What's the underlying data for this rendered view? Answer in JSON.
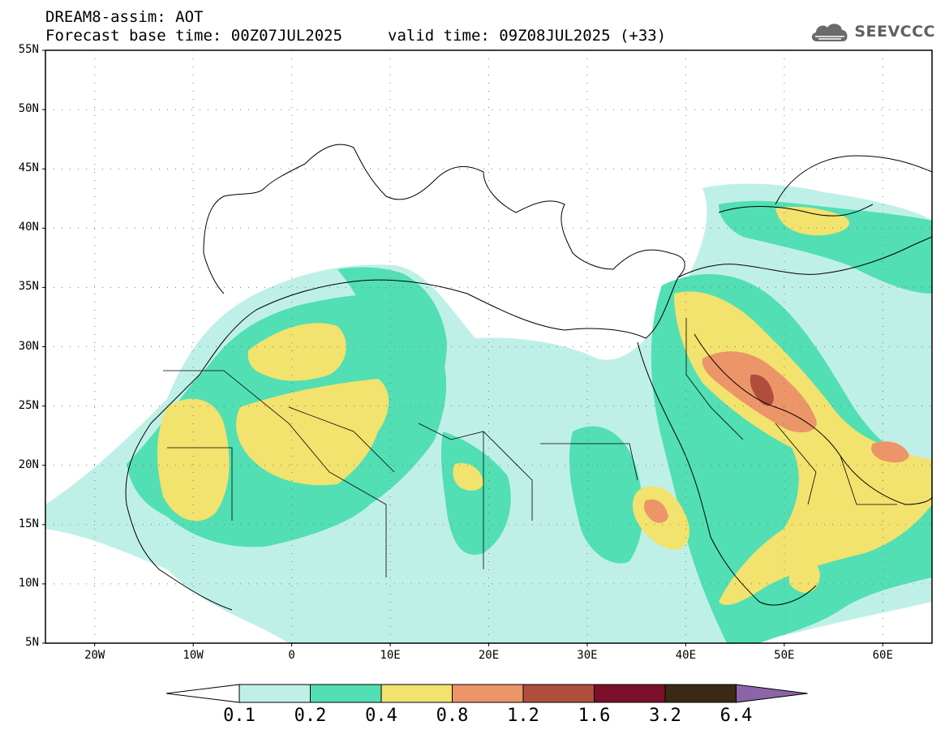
{
  "header": {
    "title_line1": "DREAM8-assim: AOT",
    "title_line2": "Forecast base time: 00Z07JUL2025",
    "valid_time": "valid time: 09Z08JUL2025 (+33)"
  },
  "logo": {
    "text": "SEEVCCC",
    "icon": "cloud-logo-icon"
  },
  "axes": {
    "lat_labels": [
      "55N",
      "50N",
      "45N",
      "40N",
      "35N",
      "30N",
      "25N",
      "20N",
      "15N",
      "10N",
      "5N"
    ],
    "lon_labels": [
      "20W",
      "10W",
      "0",
      "10E",
      "20E",
      "30E",
      "40E",
      "50E",
      "60E"
    ],
    "lat_range": [
      5,
      55
    ],
    "lon_range": [
      -25,
      65
    ]
  },
  "legend": {
    "levels": [
      "0.1",
      "0.2",
      "0.4",
      "0.8",
      "1.2",
      "1.6",
      "3.2",
      "6.4"
    ],
    "colors": [
      "#bff0e8",
      "#52dfb3",
      "#f2e26e",
      "#ec9568",
      "#b04e3e",
      "#7c0f2a",
      "#3a2a14",
      "#8c64a8"
    ]
  }
}
